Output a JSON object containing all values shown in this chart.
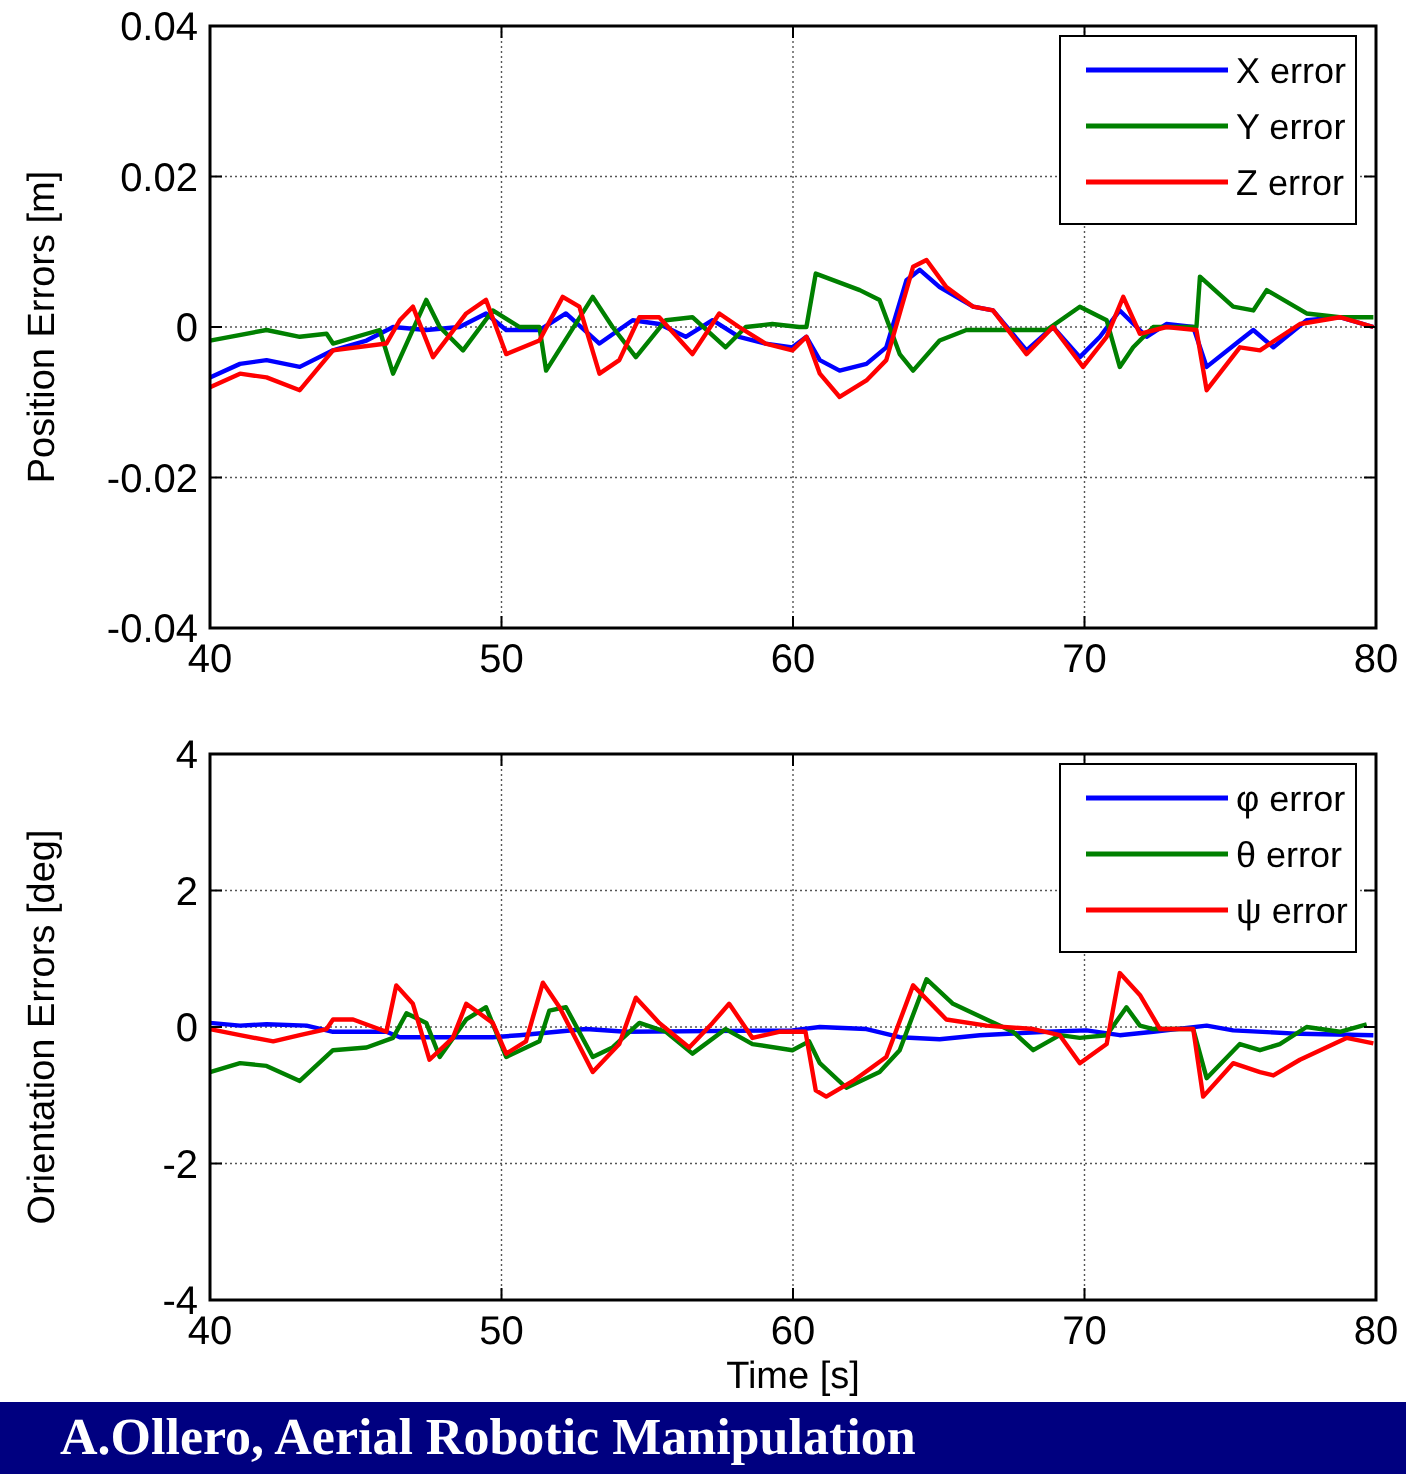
{
  "chart_data": [
    {
      "type": "line",
      "ylabel": "Position Errors [m]",
      "xlim": [
        40,
        80
      ],
      "ylim": [
        -0.04,
        0.04
      ],
      "xticks": [
        40,
        50,
        60,
        70,
        80
      ],
      "yticks": [
        -0.04,
        -0.02,
        0,
        0.02,
        0.04
      ],
      "grid": true,
      "legend": "top right",
      "line_style": "solid",
      "series": [
        {
          "name": "X error",
          "color": "#0000ff",
          "x": [
            40,
            41.03,
            41.94,
            43.08,
            44.22,
            45.37,
            46.28,
            47.42,
            48.56,
            49.47,
            50.16,
            51.3,
            52.21,
            53.36,
            54.5,
            55.41,
            56.32,
            57.24,
            58.15,
            59.06,
            59.98,
            60.46,
            60.92,
            61.6,
            62.52,
            63.2,
            63.89,
            64.35,
            65.03,
            66.18,
            66.86,
            68.01,
            68.92,
            69.84,
            70.53,
            71.21,
            72.13,
            72.81,
            73.73,
            74.19,
            75.33,
            75.79,
            76.48,
            77.62,
            78.76,
            79.91
          ],
          "values": [
            -0.0067,
            -0.0049,
            -0.0044,
            -0.0053,
            -0.0031,
            -0.0018,
            0,
            -0.0004,
            0,
            0.0018,
            -0.0004,
            -0.0004,
            0.0018,
            -0.0022,
            0.0009,
            0.0004,
            -0.0013,
            0.0009,
            -0.0013,
            -0.0022,
            -0.0027,
            -0.0013,
            -0.0044,
            -0.0058,
            -0.0049,
            -0.0027,
            0.0062,
            0.0076,
            0.0053,
            0.0027,
            0.0022,
            -0.0031,
            0,
            -0.004,
            -0.0013,
            0.0022,
            -0.0013,
            0.0004,
            0,
            -0.0053,
            -0.0018,
            -0.0004,
            -0.0027,
            0.0009,
            0.0013,
            0
          ]
        },
        {
          "name": "Y error",
          "color": "#008000",
          "x": [
            40,
            41.94,
            43.08,
            44.0,
            44.22,
            45.82,
            46.28,
            47.42,
            47.88,
            48.68,
            49.7,
            50.62,
            51.3,
            51.53,
            53.13,
            53.81,
            54.61,
            55.64,
            56.55,
            57.69,
            58.38,
            59.29,
            60.21,
            60.46,
            60.78,
            62.29,
            62.97,
            63.66,
            64.12,
            65.03,
            65.95,
            67.55,
            68.7,
            69.84,
            70.76,
            71.21,
            71.67,
            72.36,
            73.84,
            73.96,
            75.1,
            75.79,
            76.25,
            77.62,
            78.76,
            79.91
          ],
          "values": [
            -0.0018,
            -0.0004,
            -0.0013,
            -0.0009,
            -0.0022,
            -0.0004,
            -0.0062,
            0.0036,
            0,
            -0.0031,
            0.0022,
            0,
            0,
            -0.0058,
            0.004,
            0,
            -0.004,
            0.0009,
            0.0013,
            -0.0027,
            0,
            0.0004,
            0,
            0,
            0.0071,
            0.0049,
            0.0036,
            -0.0036,
            -0.0058,
            -0.0018,
            -0.0004,
            -0.0004,
            -0.0004,
            0.0027,
            0.0009,
            -0.0053,
            -0.0027,
            0,
            0,
            0.0067,
            0.0027,
            0.0022,
            0.0049,
            0.0018,
            0.0013,
            0.0013
          ]
        },
        {
          "name": "Z error",
          "color": "#ff0000",
          "x": [
            40,
            41.03,
            41.94,
            43.08,
            44.22,
            46.05,
            46.51,
            46.96,
            47.65,
            48.79,
            49.47,
            50.16,
            51.3,
            52.1,
            52.67,
            53.36,
            54.04,
            54.73,
            55.41,
            56.55,
            57.47,
            58.15,
            59.06,
            59.98,
            60.46,
            60.92,
            61.6,
            62.52,
            63.2,
            64.12,
            64.58,
            65.26,
            66.18,
            66.86,
            68.01,
            68.92,
            69.95,
            70.76,
            71.33,
            71.9,
            72.81,
            73.84,
            74.19,
            75.33,
            76.02,
            77.39,
            78.76,
            79.91
          ],
          "values": [
            -0.008,
            -0.0062,
            -0.0067,
            -0.0084,
            -0.0031,
            -0.0022,
            0.0009,
            0.0027,
            -0.004,
            0.0018,
            0.0036,
            -0.0036,
            -0.0018,
            0.004,
            0.0027,
            -0.0062,
            -0.0044,
            0.0013,
            0.0013,
            -0.0036,
            0.0018,
            0,
            -0.0022,
            -0.0031,
            -0.0013,
            -0.0062,
            -0.0093,
            -0.0071,
            -0.0044,
            0.008,
            0.0089,
            0.0053,
            0.0027,
            0.0022,
            -0.0036,
            0,
            -0.0053,
            -0.0013,
            0.004,
            -0.0009,
            0,
            -0.0004,
            -0.0084,
            -0.0027,
            -0.0031,
            0.0004,
            0.0013,
            0
          ]
        }
      ]
    },
    {
      "type": "line",
      "xlabel": "Time [s]",
      "ylabel": "Orientation Errors [deg]",
      "xlim": [
        40,
        80
      ],
      "ylim": [
        -4,
        4
      ],
      "xticks": [
        40,
        50,
        60,
        70,
        80
      ],
      "yticks": [
        -4,
        -2,
        0,
        2,
        4
      ],
      "grid": true,
      "legend": "top right",
      "line_style": "solid",
      "annotations": [
        "A.Ollero, Aerial Robotic Manipulation"
      ],
      "series": [
        {
          "name": "φ error",
          "color": "#0000ff",
          "x": [
            40,
            41.03,
            41.94,
            43.31,
            44.22,
            46.05,
            46.51,
            49.7,
            50.62,
            52.9,
            54.27,
            59.98,
            60.92,
            62.52,
            63.66,
            65.03,
            66.41,
            68.7,
            70.07,
            71.21,
            72.36,
            74.19,
            75.1,
            77.39,
            79.91
          ],
          "values": [
            0.06,
            0.02,
            0.04,
            0.02,
            -0.07,
            -0.07,
            -0.15,
            -0.15,
            -0.12,
            -0.03,
            -0.07,
            -0.05,
            0,
            -0.03,
            -0.15,
            -0.18,
            -0.12,
            -0.07,
            -0.05,
            -0.12,
            -0.07,
            0.02,
            -0.05,
            -0.1,
            -0.12
          ]
        },
        {
          "name": "θ error",
          "color": "#008000",
          "x": [
            40,
            41.03,
            41.94,
            43.08,
            44.22,
            45.37,
            46.28,
            46.74,
            47.42,
            47.88,
            48.79,
            49.47,
            50.16,
            51.3,
            51.64,
            52.21,
            53.13,
            53.81,
            54.73,
            55.64,
            56.55,
            57.69,
            58.61,
            59.98,
            60.55,
            60.92,
            61.83,
            62.97,
            63.66,
            64.58,
            65.49,
            66.64,
            67.55,
            68.24,
            69.15,
            69.84,
            70.76,
            71.44,
            71.9,
            72.36,
            73.73,
            74.19,
            75.33,
            76.02,
            76.7,
            77.62,
            78.76,
            79.68
          ],
          "values": [
            -0.66,
            -0.53,
            -0.57,
            -0.79,
            -0.34,
            -0.3,
            -0.16,
            0.2,
            0.06,
            -0.44,
            0.11,
            0.29,
            -0.44,
            -0.21,
            0.24,
            0.29,
            -0.44,
            -0.3,
            0.06,
            -0.07,
            -0.39,
            -0.03,
            -0.25,
            -0.34,
            -0.21,
            -0.53,
            -0.89,
            -0.66,
            -0.34,
            0.7,
            0.34,
            0.11,
            -0.07,
            -0.34,
            -0.12,
            -0.16,
            -0.12,
            0.29,
            0.02,
            -0.03,
            -0.03,
            -0.75,
            -0.25,
            -0.34,
            -0.25,
            0,
            -0.07,
            0.04
          ]
        },
        {
          "name": "ψ error",
          "color": "#ff0000",
          "x": [
            40,
            41.03,
            42.17,
            43.08,
            44.0,
            44.22,
            44.91,
            46.05,
            46.39,
            46.96,
            47.53,
            48.33,
            48.79,
            49.7,
            50.16,
            50.84,
            51.42,
            51.99,
            53.13,
            54.04,
            54.61,
            55.41,
            56.44,
            57.24,
            57.81,
            58.61,
            59.52,
            60.43,
            60.78,
            61.14,
            62.06,
            63.2,
            64.12,
            65.26,
            66.64,
            68.24,
            69.15,
            69.84,
            70.76,
            71.21,
            71.9,
            72.59,
            73.73,
            74.07,
            75.1,
            76.02,
            76.48,
            77.39,
            78.99,
            79.91
          ],
          "values": [
            -0.03,
            -0.12,
            -0.21,
            -0.12,
            -0.03,
            0.11,
            0.11,
            -0.07,
            0.61,
            0.34,
            -0.48,
            -0.16,
            0.34,
            0.06,
            -0.39,
            -0.21,
            0.65,
            0.29,
            -0.66,
            -0.25,
            0.43,
            0.06,
            -0.3,
            0.06,
            0.34,
            -0.16,
            -0.07,
            -0.07,
            -0.93,
            -1.02,
            -0.79,
            -0.44,
            0.61,
            0.11,
            0.02,
            -0.03,
            -0.12,
            -0.53,
            -0.25,
            0.79,
            0.47,
            -0.03,
            -0.03,
            -1.02,
            -0.53,
            -0.66,
            -0.71,
            -0.48,
            -0.16,
            -0.24
          ]
        }
      ]
    }
  ]
}
